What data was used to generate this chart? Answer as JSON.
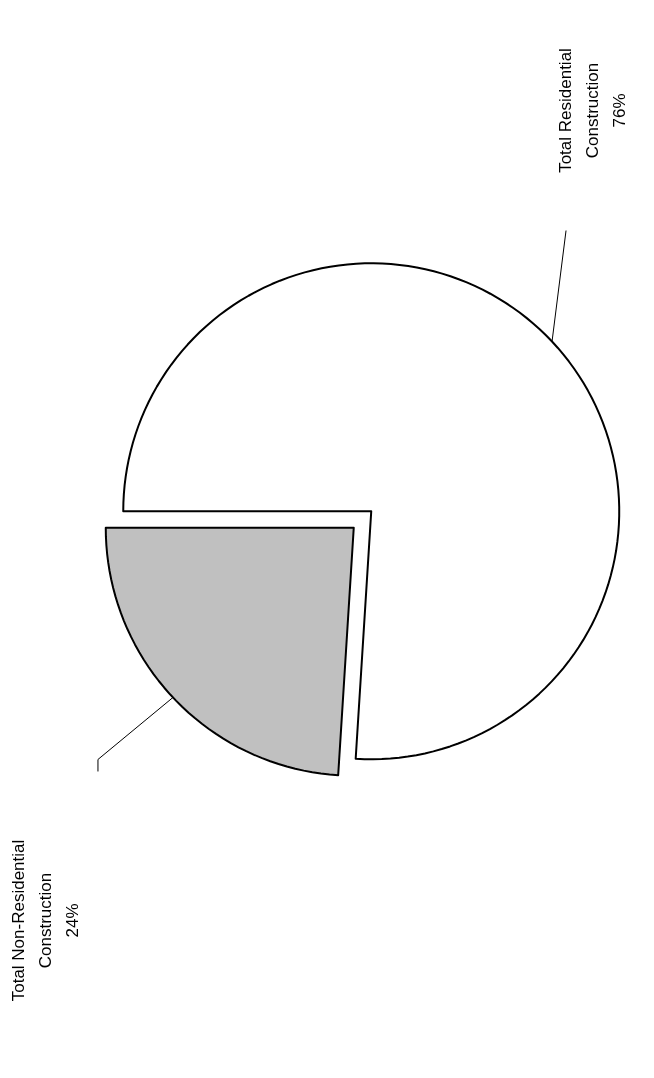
{
  "chart_data": {
    "type": "pie",
    "categories": [
      "Total Non-Residential Construction",
      "Total Residential Construction"
    ],
    "values": [
      24,
      76
    ],
    "value_labels": [
      "24%",
      "76%"
    ],
    "colors": [
      "#c0c0c0",
      "#ffffff"
    ]
  }
}
